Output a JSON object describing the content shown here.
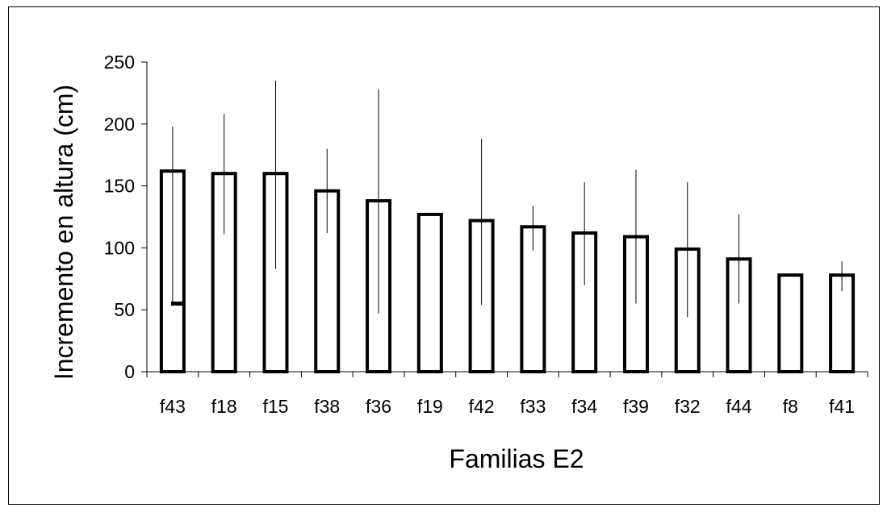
{
  "chart_data": {
    "type": "bar",
    "title": "",
    "xlabel": "Familias E2",
    "ylabel": "Incremento en altura (cm)",
    "ylim": [
      0,
      250
    ],
    "yticks": [
      0,
      50,
      100,
      150,
      200,
      250
    ],
    "categories": [
      "f43",
      "f18",
      "f15",
      "f38",
      "f36",
      "f19",
      "f42",
      "f33",
      "f34",
      "f39",
      "f32",
      "f44",
      "f8",
      "f41"
    ],
    "series": [
      {
        "values": [
          162,
          160,
          160,
          146,
          138,
          127,
          122,
          117,
          112,
          109,
          99,
          91,
          78,
          78
        ],
        "error_high": [
          198,
          208,
          235,
          180,
          228,
          127,
          188,
          134,
          153,
          163,
          153,
          127,
          78,
          89
        ],
        "error_low": [
          55,
          111,
          83,
          112,
          47,
          127,
          54,
          98,
          70,
          55,
          44,
          55,
          78,
          65
        ]
      }
    ],
    "grid": false,
    "legend": "none",
    "colors": {
      "bar_fill": "#ffffff",
      "bar_stroke": "#000000",
      "axis": "#000000"
    }
  }
}
